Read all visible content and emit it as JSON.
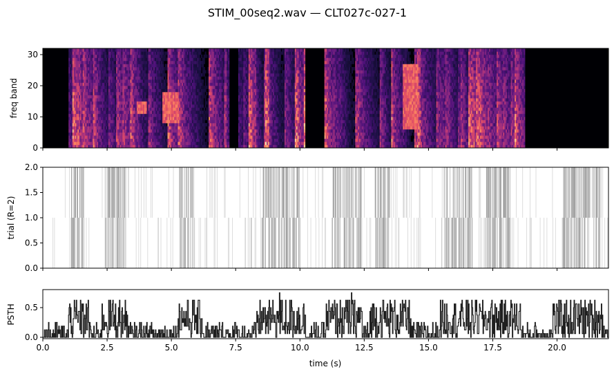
{
  "title": "STIM_00seq2.wav — CLT027c-027-1",
  "chart_data": [
    {
      "type": "heatmap",
      "panel": "spectrogram",
      "ylabel": "freq band",
      "xlim": [
        0,
        22
      ],
      "ylim": [
        0,
        32
      ],
      "yticks": [
        "0",
        "10",
        "20",
        "30"
      ],
      "n_bands": 32,
      "colormap": "magma",
      "sound_segments": [
        [
          0.97,
          7.2
        ],
        [
          7.55,
          10.18
        ],
        [
          10.95,
          18.75
        ]
      ],
      "silent_segments": [
        [
          0.0,
          0.97
        ],
        [
          7.2,
          7.55
        ],
        [
          10.18,
          10.95
        ],
        [
          18.75,
          22.0
        ]
      ],
      "bright_regions": [
        {
          "x": [
            4.6,
            5.25
          ],
          "bands": [
            8,
            17
          ]
        },
        {
          "x": [
            14.0,
            14.6
          ],
          "bands": [
            6,
            26
          ]
        },
        {
          "x": [
            3.6,
            4.0
          ],
          "bands": [
            11,
            14
          ]
        }
      ]
    },
    {
      "type": "scatter",
      "panel": "raster",
      "ylabel": "trial (R=2)",
      "xlim": [
        0,
        22
      ],
      "ylim": [
        0,
        2
      ],
      "yticks": [
        "0.0",
        "0.5",
        "1.0",
        "1.5",
        "2.0"
      ],
      "trials": 2,
      "dense_spike_regions": [
        [
          1.1,
          1.6
        ],
        [
          2.4,
          3.2
        ],
        [
          5.3,
          5.9
        ],
        [
          8.5,
          10.0
        ],
        [
          11.2,
          12.4
        ],
        [
          12.9,
          13.5
        ],
        [
          15.6,
          16.7
        ],
        [
          17.2,
          18.2
        ],
        [
          20.2,
          21.7
        ]
      ]
    },
    {
      "type": "line",
      "panel": "psth",
      "ylabel": "PSTH",
      "xlabel": "time (s)",
      "xlim": [
        0,
        22
      ],
      "ylim": [
        0,
        0.78
      ],
      "yticks": [
        "0.0",
        "0.5"
      ],
      "xticks": [
        "0.0",
        "2.5",
        "5.0",
        "7.5",
        "10.0",
        "12.5",
        "15.0",
        "17.5",
        "20.0"
      ],
      "levels": [
        0,
        0.0625,
        0.125,
        0.1875,
        0.25,
        0.3125,
        0.375,
        0.4375,
        0.5,
        0.5625,
        0.625
      ],
      "peaks": [
        {
          "x": 9.2,
          "y": 0.75
        },
        {
          "x": 12.0,
          "y": 0.75
        }
      ],
      "active_intervals": [
        [
          1.0,
          1.8
        ],
        [
          2.3,
          3.3
        ],
        [
          5.2,
          6.2
        ],
        [
          8.3,
          10.2
        ],
        [
          11.0,
          12.4
        ],
        [
          12.7,
          14.3
        ],
        [
          15.4,
          18.6
        ],
        [
          19.8,
          21.8
        ]
      ]
    }
  ],
  "colors": {
    "raster_line": "#555555",
    "psth_line": "#1f1f1f",
    "axis": "#000000",
    "spectrogram_background": "#000004"
  }
}
